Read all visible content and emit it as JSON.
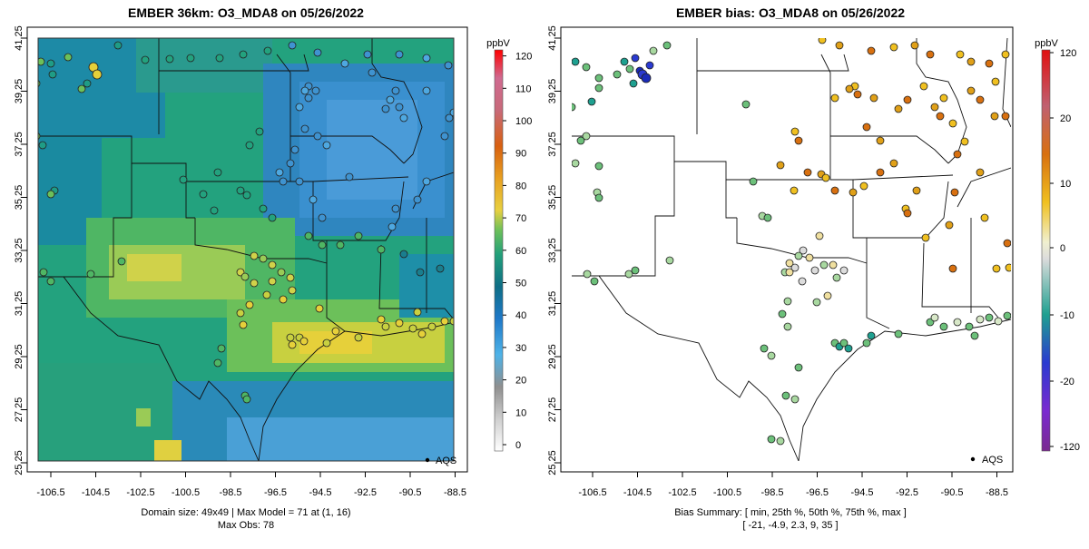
{
  "left_panel": {
    "title": "EMBER 36km: O3_MDA8 on 05/26/2022",
    "legend_label": "AQS",
    "colorbar_unit": "ppbV",
    "colorbar_ticks": [
      "0",
      "10",
      "20",
      "30",
      "40",
      "50",
      "60",
      "70",
      "80",
      "90",
      "100",
      "110",
      "120"
    ],
    "footer": [
      "Domain size: 49x49 | Max Model = 71 at (1, 16)",
      "Max Obs: 78"
    ]
  },
  "right_panel": {
    "title": "EMBER bias: O3_MDA8 on 05/26/2022",
    "legend_label": "AQS",
    "colorbar_unit": "ppbV",
    "colorbar_ticks": [
      "-120",
      "-20",
      "-10",
      "0",
      "10",
      "20",
      "120"
    ],
    "footer": [
      "Bias Summary: [ min, 25th %, 50th %, 75th %, max ]",
      "[ -21,   -4.9,   2.3,   9,   35 ]"
    ]
  },
  "axes": {
    "x_ticks": [
      "-106.5",
      "-104.5",
      "-102.5",
      "-100.5",
      "-98.5",
      "-96.5",
      "-94.5",
      "-92.5",
      "-90.5",
      "-88.5"
    ],
    "y_ticks": [
      "25.25",
      "27.25",
      "29.25",
      "31.25",
      "33.25",
      "35.25",
      "37.25",
      "39.25",
      "41.25"
    ]
  },
  "colors": {
    "model_scale": [
      "#ffffff",
      "#9a9a9a",
      "#4eb3e8",
      "#1e78c8",
      "#0e6e86",
      "#22a07a",
      "#6cc05a",
      "#e8d040",
      "#e8a020",
      "#d86010",
      "#c83030",
      "#d07090",
      "#ff0000"
    ],
    "bias_scale": [
      "#7a2a90",
      "#2a3ad0",
      "#1ea090",
      "#f0f0f0",
      "#f0c020",
      "#d87010",
      "#e01010"
    ]
  }
}
